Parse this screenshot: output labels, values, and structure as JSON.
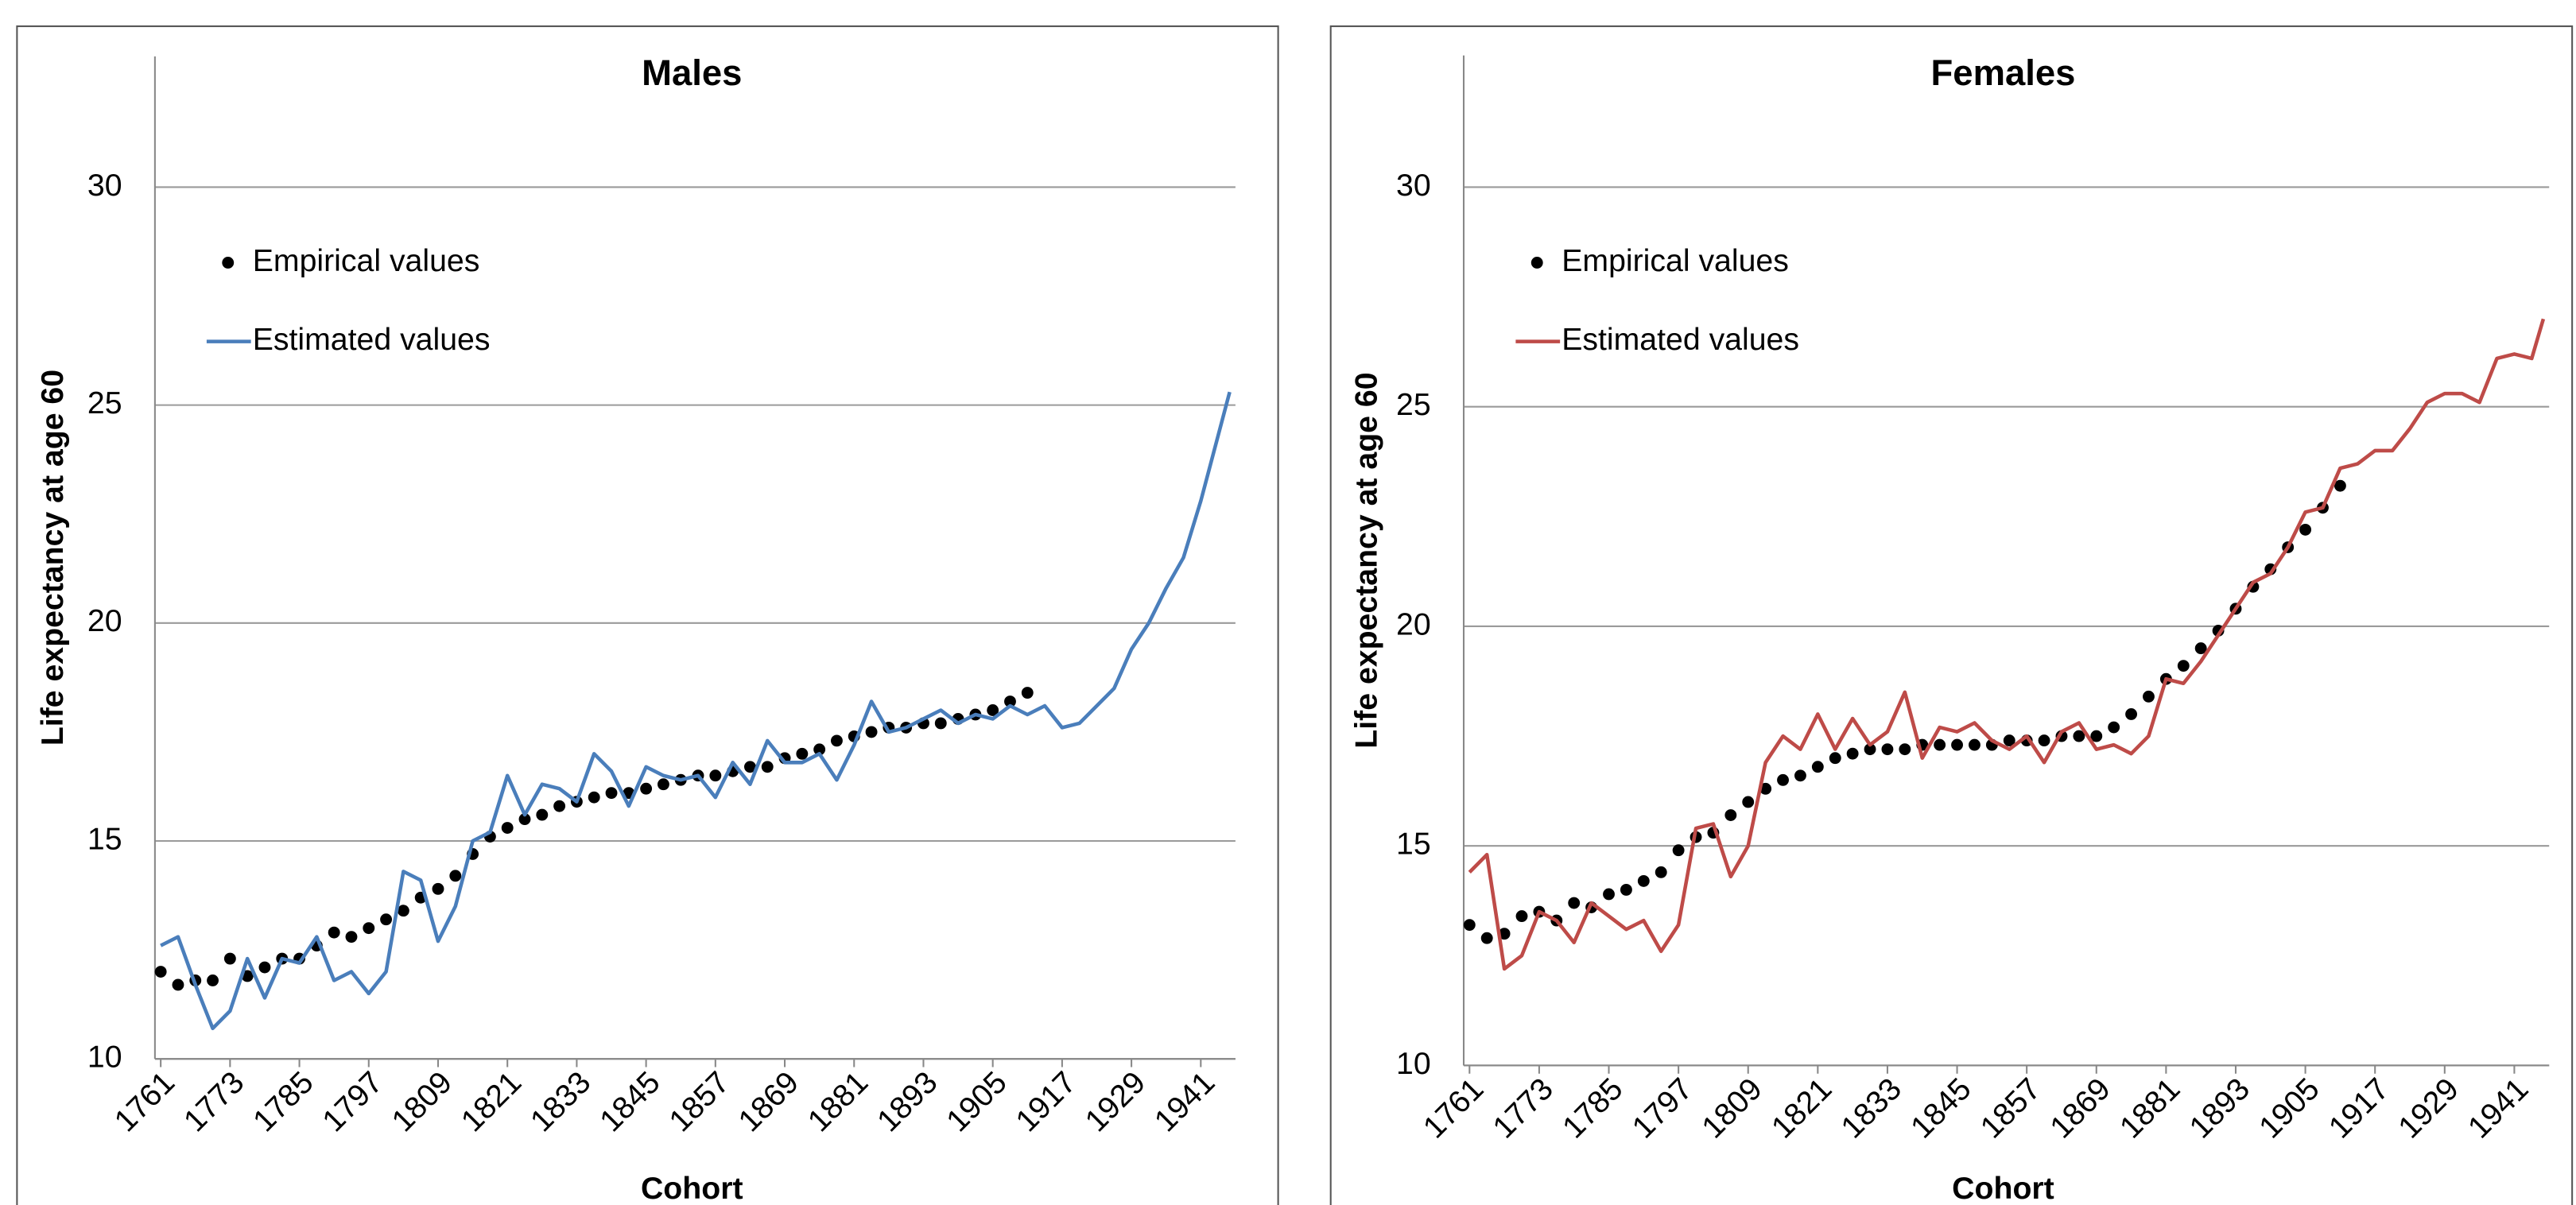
{
  "chart_data": [
    {
      "type": "line",
      "title": "Males",
      "xlabel": "Cohort",
      "ylabel": "Life expectancy at age 60",
      "xlim": [
        1760,
        1947
      ],
      "ylim": [
        10,
        33
      ],
      "xticks": [
        1761,
        1773,
        1785,
        1797,
        1809,
        1821,
        1833,
        1845,
        1857,
        1869,
        1881,
        1893,
        1905,
        1917,
        1929,
        1941
      ],
      "yticks": [
        10,
        15,
        20,
        25,
        30
      ],
      "grid": true,
      "legend": "upper left",
      "series": [
        {
          "name": "Empirical values",
          "color": "#000000",
          "mode": "markers",
          "x": [
            1761,
            1764,
            1767,
            1770,
            1773,
            1776,
            1779,
            1782,
            1785,
            1788,
            1791,
            1794,
            1797,
            1800,
            1803,
            1806,
            1809,
            1812,
            1815,
            1818,
            1821,
            1824,
            1827,
            1830,
            1833,
            1836,
            1839,
            1842,
            1845,
            1848,
            1851,
            1854,
            1857,
            1860,
            1863,
            1866,
            1869,
            1872,
            1875,
            1878,
            1881,
            1884,
            1887,
            1890,
            1893,
            1896,
            1899,
            1902,
            1905,
            1908,
            1911
          ],
          "values": [
            12.0,
            11.7,
            11.8,
            11.8,
            12.3,
            11.9,
            12.1,
            12.3,
            12.3,
            12.6,
            12.9,
            12.8,
            13.0,
            13.2,
            13.4,
            13.7,
            13.9,
            14.2,
            14.7,
            15.1,
            15.3,
            15.5,
            15.6,
            15.8,
            15.9,
            16.0,
            16.1,
            16.1,
            16.2,
            16.3,
            16.4,
            16.5,
            16.5,
            16.6,
            16.7,
            16.7,
            16.9,
            17.0,
            17.1,
            17.3,
            17.4,
            17.5,
            17.6,
            17.6,
            17.7,
            17.7,
            17.8,
            17.9,
            18.0,
            18.2,
            18.4
          ]
        },
        {
          "name": "Estimated values",
          "color": "#4a7ebb",
          "mode": "line",
          "x": [
            1761,
            1764,
            1767,
            1770,
            1773,
            1776,
            1779,
            1782,
            1785,
            1788,
            1791,
            1794,
            1797,
            1800,
            1803,
            1806,
            1809,
            1812,
            1815,
            1818,
            1821,
            1824,
            1827,
            1830,
            1833,
            1836,
            1839,
            1842,
            1845,
            1848,
            1851,
            1854,
            1857,
            1860,
            1863,
            1866,
            1869,
            1872,
            1875,
            1878,
            1881,
            1884,
            1887,
            1890,
            1893,
            1896,
            1899,
            1902,
            1905,
            1908,
            1911,
            1914,
            1917,
            1920,
            1923,
            1926,
            1929,
            1932,
            1935,
            1938,
            1941,
            1944,
            1946
          ],
          "values": [
            12.6,
            12.8,
            11.7,
            10.7,
            11.1,
            12.3,
            11.4,
            12.3,
            12.2,
            12.8,
            11.8,
            12.0,
            11.5,
            12.0,
            14.3,
            14.1,
            12.7,
            13.5,
            15.0,
            15.2,
            16.5,
            15.6,
            16.3,
            16.2,
            15.9,
            17.0,
            16.6,
            15.8,
            16.7,
            16.5,
            16.4,
            16.5,
            16.0,
            16.8,
            16.3,
            17.3,
            16.8,
            16.8,
            17.0,
            16.4,
            17.2,
            18.2,
            17.5,
            17.6,
            17.8,
            18.0,
            17.7,
            17.9,
            17.8,
            18.1,
            17.9,
            18.1,
            17.6,
            17.7,
            18.1,
            18.5,
            19.4,
            20.0,
            20.8,
            21.5,
            22.8,
            24.3,
            25.3
          ]
        }
      ]
    },
    {
      "type": "line",
      "title": "Females",
      "xlabel": "Cohort",
      "ylabel": "Life expectancy at age 60",
      "xlim": [
        1760,
        1947
      ],
      "ylim": [
        10,
        33
      ],
      "xticks": [
        1761,
        1773,
        1785,
        1797,
        1809,
        1821,
        1833,
        1845,
        1857,
        1869,
        1881,
        1893,
        1905,
        1917,
        1929,
        1941
      ],
      "yticks": [
        10,
        15,
        20,
        25,
        30
      ],
      "grid": true,
      "legend": "upper left",
      "series": [
        {
          "name": "Empirical values",
          "color": "#000000",
          "mode": "markers",
          "x": [
            1761,
            1764,
            1767,
            1770,
            1773,
            1776,
            1779,
            1782,
            1785,
            1788,
            1791,
            1794,
            1797,
            1800,
            1803,
            1806,
            1809,
            1812,
            1815,
            1818,
            1821,
            1824,
            1827,
            1830,
            1833,
            1836,
            1839,
            1842,
            1845,
            1848,
            1851,
            1854,
            1857,
            1860,
            1863,
            1866,
            1869,
            1872,
            1875,
            1878,
            1881,
            1884,
            1887,
            1890,
            1893,
            1896,
            1899,
            1902,
            1905,
            1908,
            1911
          ],
          "values": [
            13.2,
            12.9,
            13.0,
            13.4,
            13.5,
            13.3,
            13.7,
            13.6,
            13.9,
            14.0,
            14.2,
            14.4,
            14.9,
            15.2,
            15.3,
            15.7,
            16.0,
            16.3,
            16.5,
            16.6,
            16.8,
            17.0,
            17.1,
            17.2,
            17.2,
            17.2,
            17.3,
            17.3,
            17.3,
            17.3,
            17.3,
            17.4,
            17.4,
            17.4,
            17.5,
            17.5,
            17.5,
            17.7,
            18.0,
            18.4,
            18.8,
            19.1,
            19.5,
            19.9,
            20.4,
            20.9,
            21.3,
            21.8,
            22.2,
            22.7,
            23.2
          ]
        },
        {
          "name": "Estimated values",
          "color": "#be4b48",
          "mode": "line",
          "x": [
            1761,
            1764,
            1767,
            1770,
            1773,
            1776,
            1779,
            1782,
            1785,
            1788,
            1791,
            1794,
            1797,
            1800,
            1803,
            1806,
            1809,
            1812,
            1815,
            1818,
            1821,
            1824,
            1827,
            1830,
            1833,
            1836,
            1839,
            1842,
            1845,
            1848,
            1851,
            1854,
            1857,
            1860,
            1863,
            1866,
            1869,
            1872,
            1875,
            1878,
            1881,
            1884,
            1887,
            1890,
            1893,
            1896,
            1899,
            1902,
            1905,
            1908,
            1911,
            1914,
            1917,
            1920,
            1923,
            1926,
            1929,
            1932,
            1935,
            1938,
            1941,
            1944,
            1946
          ],
          "values": [
            14.4,
            14.8,
            12.2,
            12.5,
            13.5,
            13.3,
            12.8,
            13.7,
            13.4,
            13.1,
            13.3,
            12.6,
            13.2,
            15.4,
            15.5,
            14.3,
            15.0,
            16.9,
            17.5,
            17.2,
            18.0,
            17.2,
            17.9,
            17.3,
            17.6,
            18.5,
            17.0,
            17.7,
            17.6,
            17.8,
            17.4,
            17.2,
            17.5,
            16.9,
            17.6,
            17.8,
            17.2,
            17.3,
            17.1,
            17.5,
            18.8,
            18.7,
            19.2,
            19.8,
            20.4,
            21.0,
            21.2,
            21.8,
            22.6,
            22.7,
            23.6,
            23.7,
            24.0,
            24.0,
            24.5,
            25.1,
            25.3,
            25.3,
            25.1,
            26.1,
            26.2,
            26.1,
            27.0
          ]
        }
      ]
    }
  ]
}
